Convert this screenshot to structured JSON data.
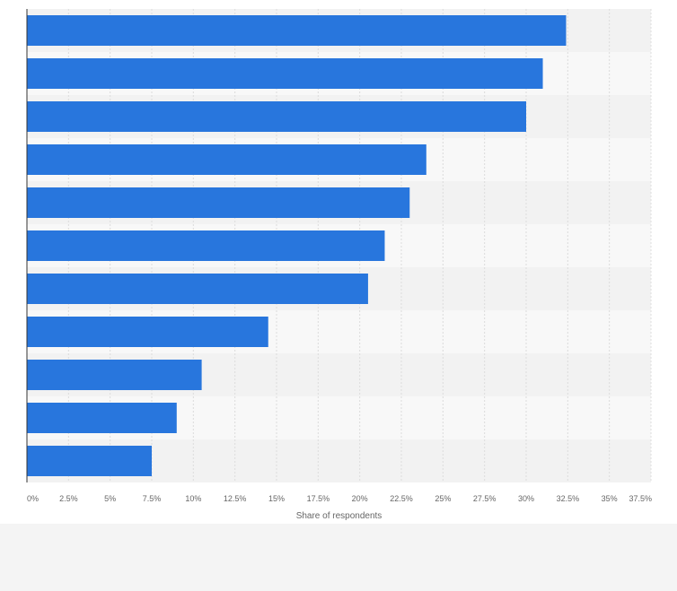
{
  "chart_data": {
    "type": "bar",
    "orientation": "horizontal",
    "categories": [
      "",
      "",
      "",
      "",
      "",
      "",
      "",
      "",
      "",
      "",
      ""
    ],
    "values": [
      32.4,
      31,
      30,
      24,
      23,
      21.5,
      20.5,
      14.5,
      10.5,
      9,
      7.5
    ],
    "xlabel": "Share of respondents",
    "xlim": [
      0,
      37.5
    ],
    "xticks": [
      "0%",
      "2.5%",
      "5%",
      "7.5%",
      "10%",
      "12.5%",
      "15%",
      "17.5%",
      "20%",
      "22.5%",
      "25%",
      "27.5%",
      "30%",
      "32.5%",
      "35%",
      "37.5%"
    ],
    "grid": true,
    "bar_color": "#2876dd",
    "band_colors": [
      "#f2f2f2",
      "#f8f8f8"
    ]
  }
}
